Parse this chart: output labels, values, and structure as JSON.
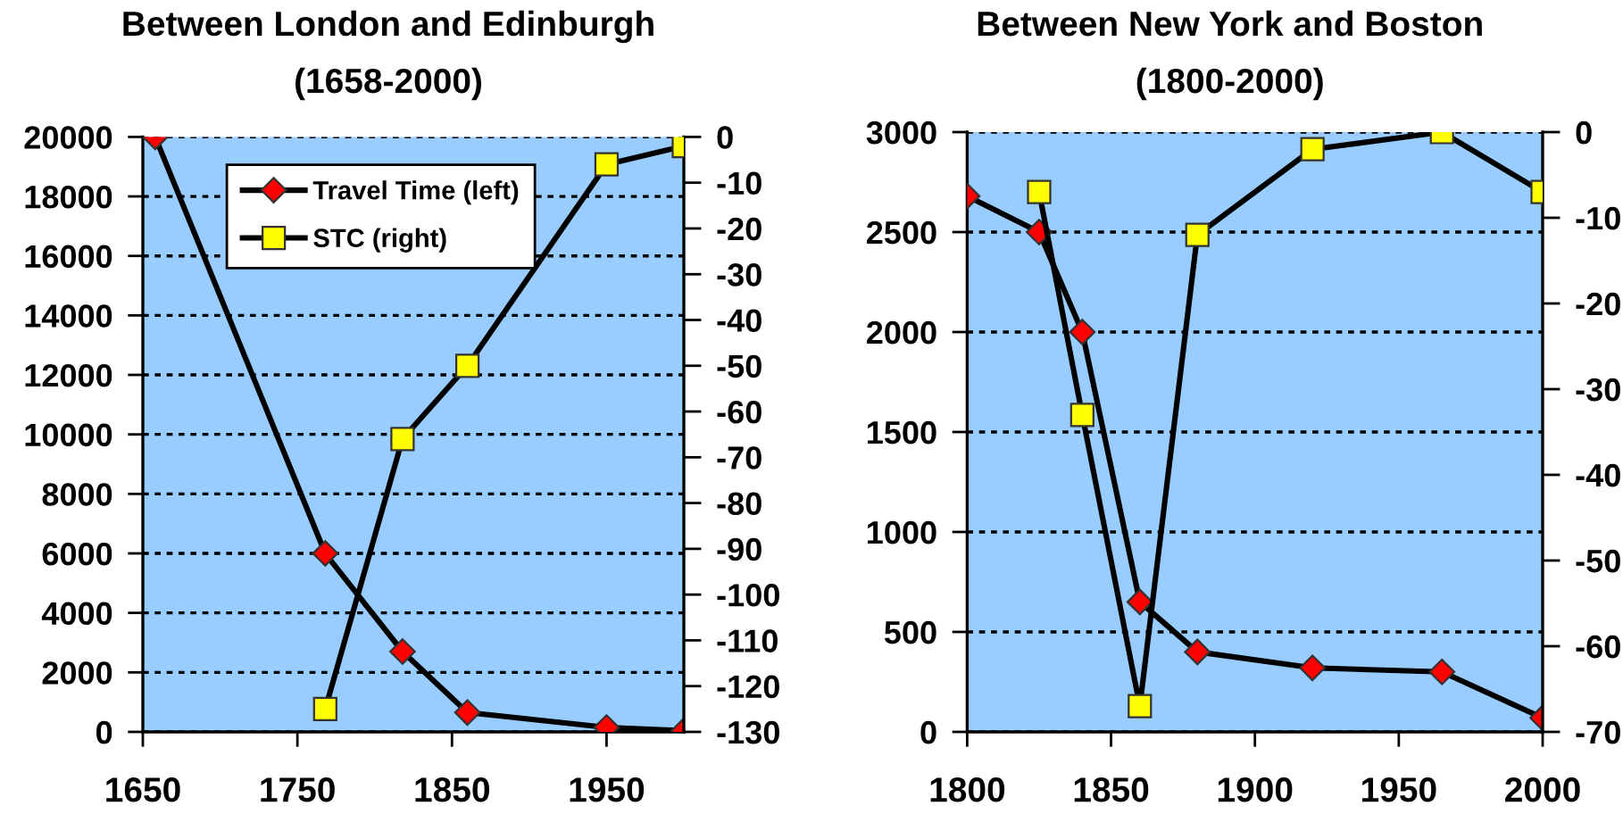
{
  "chart_data": [
    {
      "type": "line",
      "title": "Between London and Edinburgh",
      "subtitle": "(1658-2000)",
      "x": [
        1658,
        1768,
        1818,
        1860,
        1950,
        2000
      ],
      "xlim": [
        1650,
        2000
      ],
      "xticks": [
        1650,
        1750,
        1850,
        1950
      ],
      "ylim": [
        0,
        20000
      ],
      "yticks": [
        0,
        2000,
        4000,
        6000,
        8000,
        10000,
        12000,
        14000,
        16000,
        18000,
        20000
      ],
      "y2lim": [
        -130,
        0
      ],
      "y2ticks": [
        0,
        -10,
        -20,
        -30,
        -40,
        -50,
        -60,
        -70,
        -80,
        -90,
        -100,
        -110,
        -120,
        -130
      ],
      "grid": "y",
      "legend": "top",
      "series": [
        {
          "name": "Travel Time (left)",
          "color": "#ff0000",
          "marker": "diamond",
          "values": [
            20000,
            6000,
            2700,
            650,
            150,
            40
          ]
        },
        {
          "name": "STC (right)",
          "color": "#ffff00",
          "marker": "square",
          "axis": "y2",
          "values": [
            null,
            -125,
            -66,
            -50,
            -6,
            -2
          ]
        }
      ]
    },
    {
      "type": "line",
      "title": "Between New York and Boston",
      "subtitle": "(1800-2000)",
      "x": [
        1800,
        1825,
        1840,
        1860,
        1880,
        1920,
        1965,
        2000
      ],
      "xlim": [
        1800,
        2000
      ],
      "xticks": [
        1800,
        1850,
        1900,
        1950,
        2000
      ],
      "ylim": [
        0,
        3000
      ],
      "yticks": [
        0,
        500,
        1000,
        1500,
        2000,
        2500,
        3000
      ],
      "y2lim": [
        -70,
        0
      ],
      "y2ticks": [
        0,
        -10,
        -20,
        -30,
        -40,
        -50,
        -60,
        -70
      ],
      "grid": "y",
      "series": [
        {
          "color": "#ff0000",
          "marker": "diamond",
          "values": [
            2680,
            2500,
            2000,
            650,
            400,
            320,
            300,
            70
          ]
        },
        {
          "color": "#ffff00",
          "marker": "square",
          "axis": "y2",
          "values": [
            null,
            -7,
            -33,
            -67,
            -12,
            -2,
            0,
            -7
          ]
        }
      ]
    }
  ]
}
